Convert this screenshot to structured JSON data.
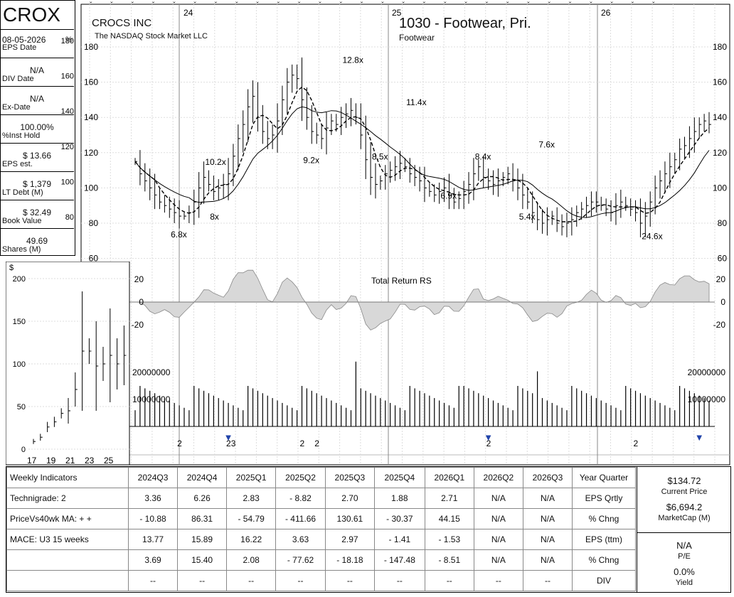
{
  "header": {
    "ticker": "CROX",
    "company": "CROCS INC",
    "exchange": "The NASDAQ Stock Market LLC",
    "group": "1030 - Footwear, Pri.",
    "subgroup": "Footwear"
  },
  "left_panel": {
    "pct_label": "%",
    "items": [
      {
        "value": "08-05-2026",
        "label": "EPS Date"
      },
      {
        "value": "N/A",
        "label": "DIV Date"
      },
      {
        "value": "N/A",
        "label": "Ex-Date"
      },
      {
        "value": "100.00%",
        "label": "%Inst Hold"
      },
      {
        "value": "$ 13.66",
        "label": "EPS est."
      },
      {
        "value": "$ 1,379",
        "label": "LT Debt (M)"
      },
      {
        "value": "$ 32.49",
        "label": "Book Value"
      },
      {
        "value": "49.69",
        "label": "Shares (M)"
      }
    ]
  },
  "chart_data": [
    {
      "type": "candlestick",
      "title": "CROCS INC",
      "x_year_labels": [
        "24",
        "25",
        "26"
      ],
      "y_ticks": [
        60,
        80,
        100,
        120,
        140,
        160,
        180
      ],
      "ylim": [
        60,
        180
      ],
      "pct_ticks": [
        80,
        100,
        120,
        140,
        160,
        180
      ],
      "weekly_close": [
        115,
        108,
        104,
        100,
        96,
        92,
        90,
        88,
        86,
        84,
        84,
        86,
        92,
        100,
        106,
        102,
        98,
        100,
        102,
        108,
        118,
        128,
        136,
        146,
        152,
        140,
        132,
        128,
        130,
        138,
        150,
        160,
        164,
        162,
        150,
        140,
        132,
        130,
        128,
        134,
        138,
        136,
        140,
        142,
        144,
        140,
        130,
        116,
        106,
        102,
        104,
        108,
        110,
        112,
        114,
        112,
        108,
        106,
        104,
        100,
        98,
        96,
        98,
        100,
        96,
        92,
        94,
        98,
        102,
        108,
        112,
        106,
        104,
        102,
        104,
        106,
        108,
        104,
        100,
        96,
        92,
        86,
        82,
        80,
        82,
        84,
        80,
        78,
        80,
        82,
        86,
        88,
        90,
        92,
        92,
        90,
        88,
        86,
        90,
        92,
        90,
        88,
        86,
        80,
        84,
        92,
        100,
        104,
        108,
        112,
        116,
        122,
        124,
        128,
        132,
        136,
        138,
        136
      ],
      "pe_annotations": [
        {
          "text": "6.8x",
          "week": 9,
          "price": 72
        },
        {
          "text": "10.2x",
          "week": 16,
          "price": 113
        },
        {
          "text": "8x",
          "week": 17,
          "price": 82
        },
        {
          "text": "9.2x",
          "week": 36,
          "price": 114
        },
        {
          "text": "12.8x",
          "week": 44,
          "price": 171
        },
        {
          "text": "8.5x",
          "week": 50,
          "price": 116
        },
        {
          "text": "11.4x",
          "week": 57,
          "price": 147
        },
        {
          "text": "6.9x",
          "week": 64,
          "price": 94
        },
        {
          "text": "8.4x",
          "week": 71,
          "price": 116
        },
        {
          "text": "5.4x",
          "week": 80,
          "price": 82
        },
        {
          "text": "7.6x",
          "week": 84,
          "price": 123
        },
        {
          "text": "24.6x",
          "week": 105,
          "price": 71
        }
      ]
    },
    {
      "type": "area",
      "title": "Total Return RS",
      "y_ticks": [
        20,
        0,
        -20
      ],
      "ylim": [
        -30,
        30
      ]
    },
    {
      "type": "bar",
      "title": "Volume",
      "y_ticks": [
        "20000000",
        "10000000"
      ],
      "ylim": [
        0,
        25000000
      ]
    },
    {
      "type": "candlestick",
      "title": "Annual",
      "y_label": "$",
      "y_ticks": [
        0,
        50,
        100,
        150,
        200
      ],
      "ylim": [
        0,
        200
      ],
      "categories": [
        "17",
        "19",
        "21",
        "23",
        "25"
      ]
    }
  ],
  "marker_numbers": [
    "2",
    "23",
    "2",
    "2",
    "2",
    "2"
  ],
  "table": {
    "columns": [
      "2024Q3",
      "2024Q4",
      "2025Q1",
      "2025Q2",
      "2025Q3",
      "2025Q4",
      "2026Q1",
      "2026Q2",
      "2026Q3"
    ],
    "header_left": "Weekly Indicators",
    "header_right": "Year Quarter",
    "rows": [
      {
        "left": "Technigrade: 2",
        "values": [
          "3.36",
          "6.26",
          "2.83",
          "- 8.82",
          "2.70",
          "1.88",
          "2.71",
          "N/A",
          "N/A"
        ],
        "right": "EPS Qrtly"
      },
      {
        "left": "PriceVs40wk MA:  + +",
        "values": [
          "- 10.88",
          "86.31",
          "- 54.79",
          "- 411.66",
          "130.61",
          "- 30.37",
          "44.15",
          "N/A",
          "N/A"
        ],
        "right": "% Chng"
      },
      {
        "left": "MACE: U3  15 weeks",
        "values": [
          "13.77",
          "15.89",
          "16.22",
          "3.63",
          "2.97",
          "- 1.41",
          "- 1.53",
          "N/A",
          "N/A"
        ],
        "right": "EPS (ttm)"
      },
      {
        "left": "",
        "values": [
          "3.69",
          "15.40",
          "2.08",
          "- 77.62",
          "- 18.18",
          "- 147.48",
          "- 8.51",
          "N/A",
          "N/A"
        ],
        "right": "% Chng"
      },
      {
        "left": "",
        "values": [
          "--",
          "--",
          "--",
          "--",
          "--",
          "--",
          "--",
          "--",
          "--"
        ],
        "right": "DIV"
      }
    ]
  },
  "right_stats": {
    "price": "$134.72",
    "price_label": "Current Price",
    "mcap": "$6,694.2",
    "mcap_label": "MarketCap (M)",
    "pe": "N/A",
    "pe_label": "P/E",
    "yield": "0.0%",
    "yield_label": "Yield"
  }
}
